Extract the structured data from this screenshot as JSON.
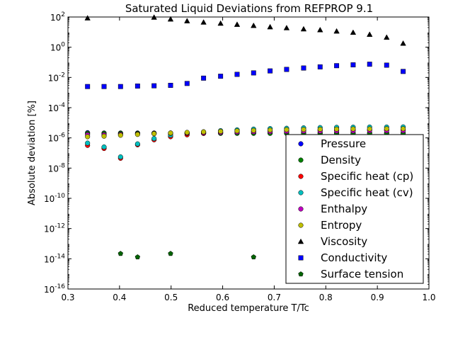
{
  "chart_data": {
    "type": "scatter",
    "title": "Saturated Liquid Deviations from REFPROP 9.1",
    "xlabel": "Reduced temperature T/Tc",
    "ylabel": "Absolute deviation [%]",
    "x_scale": "linear",
    "y_scale": "log",
    "xlim": [
      0.3,
      1.0
    ],
    "ylim_exp": [
      -16,
      2
    ],
    "x_ticks": [
      "0.3",
      "0.4",
      "0.5",
      "0.6",
      "0.7",
      "0.8",
      "0.9",
      "1.0"
    ],
    "y_tick_exponents": [
      -16,
      -14,
      -12,
      -10,
      -8,
      -6,
      -4,
      -2,
      0,
      2
    ],
    "y_tick_base": "10",
    "grid": false,
    "legend_position": "lower-right",
    "series": [
      {
        "name": "Pressure",
        "marker": "circle",
        "color": "#0000ff",
        "x": [
          0.338,
          0.37,
          0.402,
          0.435,
          0.467,
          0.499,
          0.531,
          0.563,
          0.596,
          0.628,
          0.66,
          0.692,
          0.724,
          0.757,
          0.789,
          0.821,
          0.853,
          0.885,
          0.918,
          0.95
        ],
        "y": [
          2.2e-06,
          2.1e-06,
          2.1e-06,
          2.1e-06,
          2.1e-06,
          2.1e-06,
          2.1e-06,
          2.1e-06,
          2.1e-06,
          2.1e-06,
          2.1e-06,
          2.1e-06,
          2.1e-06,
          2.1e-06,
          2.1e-06,
          2.1e-06,
          2.1e-06,
          2.1e-06,
          2.1e-06,
          2.1e-06
        ]
      },
      {
        "name": "Density",
        "marker": "circle",
        "color": "#008000",
        "x": [
          0.338,
          0.37,
          0.402,
          0.435,
          0.467,
          0.499,
          0.531,
          0.563,
          0.596,
          0.628,
          0.66,
          0.692,
          0.724,
          0.757,
          0.789,
          0.821,
          0.853,
          0.885,
          0.918,
          0.95
        ],
        "y": [
          2e-06,
          2e-06,
          2e-06,
          2e-06,
          2e-06,
          2e-06,
          2e-06,
          2e-06,
          2e-06,
          2e-06,
          2e-06,
          2e-06,
          2e-06,
          2e-06,
          2e-06,
          2e-06,
          2e-06,
          2e-06,
          2e-06,
          2e-06
        ]
      },
      {
        "name": "Specific heat (cp)",
        "marker": "circle",
        "color": "#ff0000",
        "x": [
          0.338,
          0.37,
          0.402,
          0.435,
          0.467,
          0.499,
          0.531,
          0.563,
          0.596,
          0.628,
          0.66,
          0.692,
          0.724,
          0.757,
          0.789,
          0.821,
          0.853,
          0.885,
          0.918,
          0.95
        ],
        "y": [
          3.2e-07,
          2e-07,
          4.5e-08,
          3.5e-07,
          7.5e-07,
          1.2e-06,
          1.6e-06,
          2e-06,
          2.3e-06,
          2.6e-06,
          2.8e-06,
          3e-06,
          3.1e-06,
          3.2e-06,
          3.3e-06,
          3.4e-06,
          3.4e-06,
          3.5e-06,
          3.5e-06,
          3.5e-06
        ]
      },
      {
        "name": "Specific heat (cv)",
        "marker": "circle",
        "color": "#00bfbf",
        "x": [
          0.338,
          0.37,
          0.402,
          0.435,
          0.467,
          0.499,
          0.531,
          0.563,
          0.596,
          0.628,
          0.66,
          0.692,
          0.724,
          0.757,
          0.789,
          0.821,
          0.853,
          0.885,
          0.918,
          0.95
        ],
        "y": [
          4.5e-07,
          2.5e-07,
          5.5e-08,
          4e-07,
          9e-07,
          1.5e-06,
          2e-06,
          2.5e-06,
          3e-06,
          3.4e-06,
          3.8e-06,
          4.1e-06,
          4.3e-06,
          4.6e-06,
          4.8e-06,
          5e-06,
          5.1e-06,
          5.2e-06,
          5.2e-06,
          5.3e-06
        ]
      },
      {
        "name": "Enthalpy",
        "marker": "circle",
        "color": "#bf00bf",
        "x": [
          0.338,
          0.37,
          0.402,
          0.435,
          0.467,
          0.499,
          0.531,
          0.563,
          0.596,
          0.628,
          0.66,
          0.692,
          0.724,
          0.757,
          0.789,
          0.821,
          0.853,
          0.885,
          0.918,
          0.95
        ],
        "y": [
          1.6e-06,
          1.6e-06,
          1.7e-06,
          1.8e-06,
          1.9e-06,
          2e-06,
          2.1e-06,
          2.2e-06,
          2.3e-06,
          2.4e-06,
          2.5e-06,
          2.6e-06,
          2.7e-06,
          2.8e-06,
          2.8e-06,
          2.9e-06,
          2.9e-06,
          3e-06,
          3e-06,
          3e-06
        ]
      },
      {
        "name": "Entropy",
        "marker": "circle",
        "color": "#bfbf00",
        "x": [
          0.338,
          0.37,
          0.402,
          0.435,
          0.467,
          0.499,
          0.531,
          0.563,
          0.596,
          0.628,
          0.66,
          0.692,
          0.724,
          0.757,
          0.789,
          0.821,
          0.853,
          0.885,
          0.918,
          0.95
        ],
        "y": [
          1.2e-06,
          1.3e-06,
          1.5e-06,
          1.7e-06,
          1.9e-06,
          2.1e-06,
          2.3e-06,
          2.5e-06,
          2.7e-06,
          2.9e-06,
          3.1e-06,
          3.3e-06,
          3.5e-06,
          3.6e-06,
          3.7e-06,
          3.8e-06,
          3.9e-06,
          3.9e-06,
          4e-06,
          4e-06
        ]
      },
      {
        "name": "Viscosity",
        "marker": "triangle",
        "color": "#000000",
        "x": [
          0.338,
          0.467,
          0.499,
          0.531,
          0.563,
          0.596,
          0.628,
          0.66,
          0.692,
          0.724,
          0.757,
          0.789,
          0.821,
          0.853,
          0.885,
          0.918,
          0.95
        ],
        "y": [
          85,
          95,
          72,
          55,
          45,
          38,
          32,
          27,
          22,
          19,
          16,
          14,
          11.5,
          9.5,
          7,
          4.5,
          1.8
        ]
      },
      {
        "name": "Conductivity",
        "marker": "square",
        "color": "#0000ff",
        "x": [
          0.338,
          0.37,
          0.402,
          0.435,
          0.467,
          0.499,
          0.531,
          0.563,
          0.596,
          0.628,
          0.66,
          0.692,
          0.724,
          0.757,
          0.789,
          0.821,
          0.853,
          0.885,
          0.918,
          0.95
        ],
        "y": [
          0.0025,
          0.0025,
          0.0025,
          0.0027,
          0.0028,
          0.003,
          0.004,
          0.009,
          0.012,
          0.016,
          0.02,
          0.027,
          0.034,
          0.042,
          0.05,
          0.06,
          0.068,
          0.075,
          0.065,
          0.025
        ]
      },
      {
        "name": "Surface tension",
        "marker": "pentagon",
        "color": "#006400",
        "x": [
          0.402,
          0.435,
          0.499,
          0.66
        ],
        "y": [
          2.2e-14,
          1.3e-14,
          2.2e-14,
          1.3e-14
        ]
      }
    ]
  }
}
